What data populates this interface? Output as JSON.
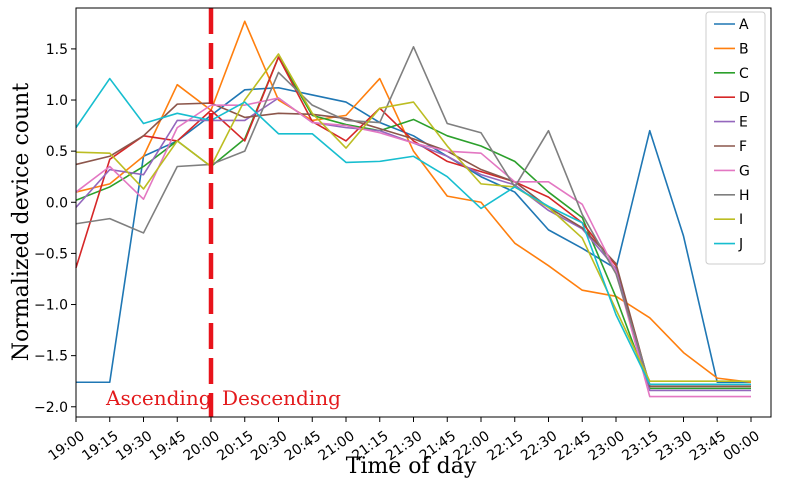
{
  "chart_data": {
    "type": "line",
    "title": "",
    "xlabel": "Time of day",
    "ylabel": "Normalized device count",
    "categories": [
      "19:00",
      "19:15",
      "19:30",
      "19:45",
      "20:00",
      "20:15",
      "20:30",
      "20:45",
      "21:00",
      "21:15",
      "21:30",
      "21:45",
      "22:00",
      "22:15",
      "22:30",
      "22:45",
      "23:00",
      "23:15",
      "23:30",
      "23:45",
      "00:00"
    ],
    "ylim": [
      -2.1,
      1.9
    ],
    "yticks": [
      -2.0,
      -1.5,
      -1.0,
      -0.5,
      0.0,
      0.5,
      1.0,
      1.5
    ],
    "ytick_labels": [
      "−2.0",
      "−1.5",
      "−1.0",
      "−0.5",
      "0.0",
      "0.5",
      "1.0",
      "1.5"
    ],
    "grid": false,
    "legend_position": "top-right",
    "series": [
      {
        "name": "A",
        "color": "#1f77b4",
        "values": [
          -1.76,
          -1.76,
          0.45,
          0.6,
          0.85,
          1.1,
          1.12,
          1.05,
          0.98,
          0.78,
          0.65,
          0.45,
          0.25,
          0.1,
          -0.27,
          -0.45,
          -0.65,
          0.7,
          -0.33,
          -1.76,
          -1.76
        ]
      },
      {
        "name": "B",
        "color": "#ff7f0e",
        "values": [
          0.1,
          0.18,
          0.45,
          1.15,
          0.9,
          1.77,
          1.0,
          0.8,
          0.85,
          1.21,
          0.5,
          0.06,
          0.0,
          -0.4,
          -0.62,
          -0.86,
          -0.92,
          -1.13,
          -1.47,
          -1.72,
          -1.76
        ]
      },
      {
        "name": "C",
        "color": "#2ca02c",
        "values": [
          0.02,
          0.15,
          0.35,
          0.6,
          0.35,
          0.62,
          1.42,
          0.85,
          0.76,
          0.7,
          0.81,
          0.65,
          0.55,
          0.4,
          0.1,
          -0.15,
          -0.93,
          -1.82,
          -1.82,
          -1.82,
          -1.82
        ]
      },
      {
        "name": "D",
        "color": "#d62728",
        "values": [
          -0.64,
          0.42,
          0.65,
          0.6,
          0.9,
          0.6,
          1.42,
          0.79,
          0.6,
          0.92,
          0.6,
          0.4,
          0.3,
          0.2,
          0.05,
          -0.2,
          -0.62,
          -1.8,
          -1.8,
          -1.8,
          -1.8
        ]
      },
      {
        "name": "E",
        "color": "#9467bd",
        "values": [
          -0.05,
          0.32,
          0.27,
          0.8,
          0.8,
          0.8,
          1.02,
          0.78,
          0.73,
          0.7,
          0.58,
          0.45,
          0.27,
          0.17,
          -0.08,
          -0.26,
          -0.65,
          -1.84,
          -1.84,
          -1.84,
          -1.84
        ]
      },
      {
        "name": "F",
        "color": "#8c564b",
        "values": [
          0.37,
          0.45,
          0.65,
          0.96,
          0.97,
          0.83,
          0.87,
          0.86,
          0.82,
          0.72,
          0.62,
          0.5,
          0.32,
          0.2,
          -0.05,
          -0.25,
          -0.6,
          -1.8,
          -1.8,
          -1.8,
          -1.8
        ]
      },
      {
        "name": "G",
        "color": "#e377c2",
        "values": [
          0.1,
          0.35,
          0.03,
          0.73,
          0.95,
          0.95,
          1.02,
          0.78,
          0.75,
          0.68,
          0.58,
          0.5,
          0.48,
          0.2,
          0.2,
          -0.02,
          -0.68,
          -1.9,
          -1.9,
          -1.9,
          -1.9
        ]
      },
      {
        "name": "H",
        "color": "#7f7f7f",
        "values": [
          -0.21,
          -0.16,
          -0.3,
          0.35,
          0.37,
          0.5,
          1.27,
          0.95,
          0.8,
          0.78,
          1.52,
          0.77,
          0.68,
          0.15,
          0.7,
          -0.12,
          -0.7,
          -1.78,
          -1.78,
          -1.78,
          -1.78
        ]
      },
      {
        "name": "I",
        "color": "#bcbd22",
        "values": [
          0.49,
          0.48,
          0.13,
          0.6,
          0.35,
          1.0,
          1.45,
          0.87,
          0.53,
          0.92,
          0.98,
          0.55,
          0.18,
          0.15,
          -0.05,
          -0.35,
          -1.05,
          -1.75,
          -1.75,
          -1.75,
          -1.75
        ]
      },
      {
        "name": "J",
        "color": "#17becf",
        "values": [
          0.73,
          1.21,
          0.77,
          0.87,
          0.8,
          0.98,
          0.67,
          0.67,
          0.39,
          0.4,
          0.45,
          0.25,
          -0.06,
          0.15,
          -0.04,
          -0.2,
          -1.1,
          -1.78,
          -1.78,
          -1.78,
          -1.78
        ]
      }
    ],
    "annotations": {
      "divider_at": "20:00",
      "divider_color": "#e8131b",
      "left_label": "Ascending",
      "right_label": "Descending"
    }
  }
}
